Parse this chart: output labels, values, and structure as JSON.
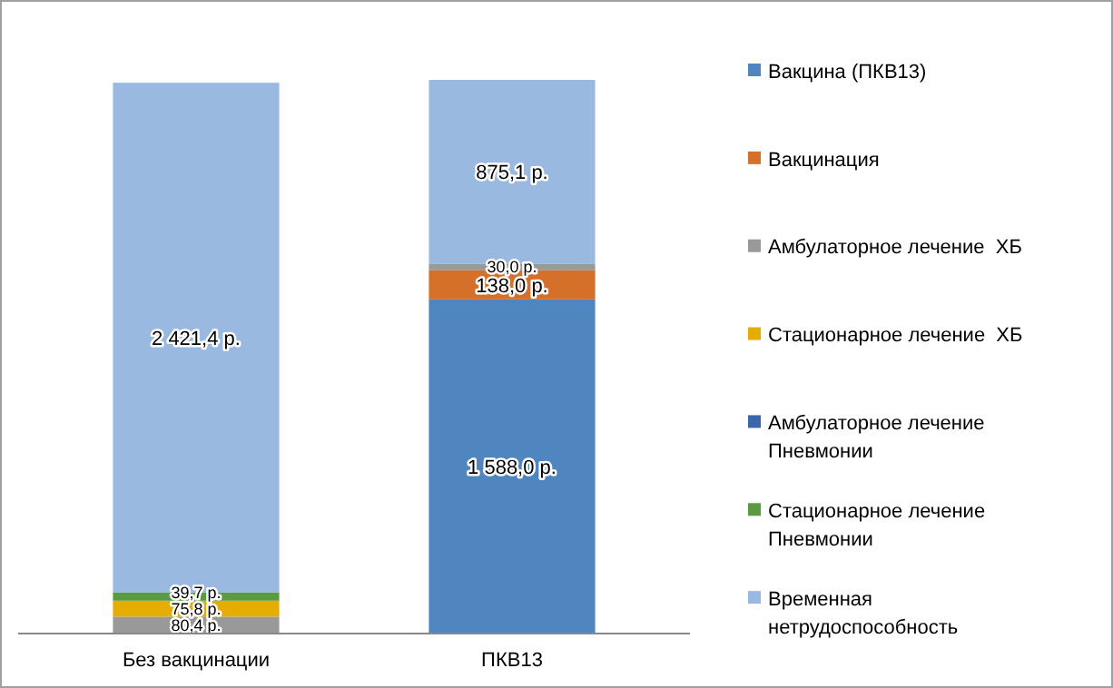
{
  "chart_data": {
    "type": "bar",
    "stacked": true,
    "categories": [
      "Без вакцинации",
      "ПКВ13"
    ],
    "series": [
      {
        "name": "Вакцина (ПКВ13)",
        "color": "#4f86bf",
        "values": [
          null,
          1588.0
        ],
        "value_labels": [
          null,
          "1 588,0 р."
        ]
      },
      {
        "name": "Вакцинация",
        "color": "#d4702a",
        "values": [
          null,
          138.0
        ],
        "value_labels": [
          null,
          "138,0 р."
        ]
      },
      {
        "name": "Амбулаторное лечение  ХБ",
        "color": "#999999",
        "values": [
          80.4,
          30.0
        ],
        "value_labels": [
          "80,4 р.",
          "30,0 р."
        ]
      },
      {
        "name": "Стационарное лечение  ХБ",
        "color": "#e6ac00",
        "values": [
          75.8,
          null
        ],
        "value_labels": [
          "75,8 р.",
          null
        ]
      },
      {
        "name": "Амбулаторное лечение Пневмонии",
        "color": "#3a66ad",
        "values": [
          null,
          null
        ],
        "value_labels": [
          null,
          null
        ]
      },
      {
        "name": "Стационарное лечение Пневмонии",
        "color": "#5b9a40",
        "values": [
          39.7,
          null
        ],
        "value_labels": [
          "39,7 р.",
          null
        ]
      },
      {
        "name": "Временная  нетрудоспособность",
        "color": "#9ab9e0",
        "values": [
          2421.4,
          875.1
        ],
        "value_labels": [
          "2 421,4 р.",
          "875,1 р."
        ]
      }
    ],
    "legend": "right"
  }
}
